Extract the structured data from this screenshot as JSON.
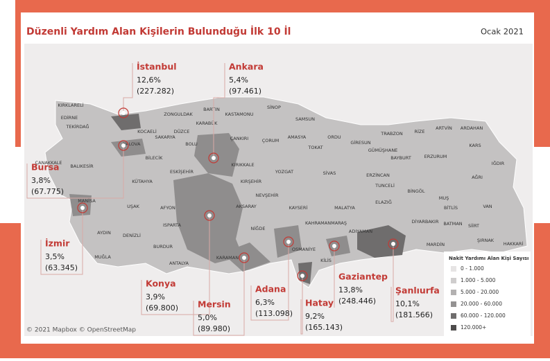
{
  "header": {
    "title": "Düzenli Yardım Alan Kişilerin Bulunduğu İlk 10 İl",
    "date": "Ocak 2021"
  },
  "callouts": [
    {
      "name": "İstanbul",
      "share": "12,6%",
      "count": "(227.282)"
    },
    {
      "name": "Ankara",
      "share": "5,4%",
      "count": "(97.461)"
    },
    {
      "name": "Bursa",
      "share": "3,8%",
      "count": "(67.775)"
    },
    {
      "name": "İzmir",
      "share": "3,5%",
      "count": "(63.345)"
    },
    {
      "name": "Konya",
      "share": "3,9%",
      "count": "(69.800)"
    },
    {
      "name": "Mersin",
      "share": "5,0%",
      "count": "(89.980)"
    },
    {
      "name": "Adana",
      "share": "6,3%",
      "count": "(113.098)"
    },
    {
      "name": "Hatay",
      "share": "9,2%",
      "count": "(165.143)"
    },
    {
      "name": "Gaziantep",
      "share": "13,8%",
      "count": "(248.446)"
    },
    {
      "name": "Şanlıurfa",
      "share": "10,1%",
      "count": "(181.566)"
    }
  ],
  "provinces": [
    "KIRKLARELİ",
    "EDİRNE",
    "TEKİRDAĞ",
    "ZONGULDAK",
    "BARTIN",
    "KASTAMONU",
    "SİNOP",
    "KARABÜK",
    "SAMSUN",
    "KOCAELİ",
    "DÜZCE",
    "YALOVA",
    "SAKARYA",
    "BOLU",
    "ÇANKIRI",
    "ÇORUM",
    "AMASYA",
    "ORDU",
    "GİRESUN",
    "TRABZON",
    "RİZE",
    "ARTVİN",
    "ARDAHAN",
    "KARS",
    "GÜMÜŞHANE",
    "BAYBURT",
    "ERZURUM",
    "TOKAT",
    "BİLECİK",
    "ÇANAKKALE",
    "BALIKESİR",
    "ESKİŞEHİR",
    "KIRIKKALE",
    "YOZGAT",
    "SİVAS",
    "ERZİNCAN",
    "IĞDIR",
    "AĞRI",
    "KÜTAHYA",
    "KIRŞEHİR",
    "TUNCELİ",
    "BİNGÖL",
    "NEVŞEHİR",
    "MANİSA",
    "UŞAK",
    "AFYON",
    "AKSARAY",
    "KAYSERİ",
    "MALATYA",
    "ELAZIĞ",
    "MUŞ",
    "BİTLİS",
    "VAN",
    "ISPARTA",
    "NİĞDE",
    "KAHRAMANMARAŞ",
    "DİYARBAKIR",
    "BATMAN",
    "SİİRT",
    "AYDIN",
    "DENİZLİ",
    "ADIYAMAN",
    "ŞIRNAK",
    "HAKKARİ",
    "MARDİN",
    "BURDUR",
    "OSMANİYE",
    "MUĞLA",
    "ANTALYA",
    "KARAMAN",
    "KİLİS"
  ],
  "legend": {
    "title": "Nakit Yardımı Alan Kişi Sayısı",
    "items": [
      {
        "label": "0 - 1.000",
        "color": "#e6e4e4"
      },
      {
        "label": "1.000 - 5.000",
        "color": "#cfcdcd"
      },
      {
        "label": "5.000 - 20.000",
        "color": "#b3b1b1"
      },
      {
        "label": "20.000 - 60.000",
        "color": "#949292"
      },
      {
        "label": "60.000 - 120.000",
        "color": "#6f6d6d"
      },
      {
        "label": "120.000+",
        "color": "#4e4c4c"
      }
    ]
  },
  "attribution": "© 2021 Mapbox © OpenStreetMap"
}
